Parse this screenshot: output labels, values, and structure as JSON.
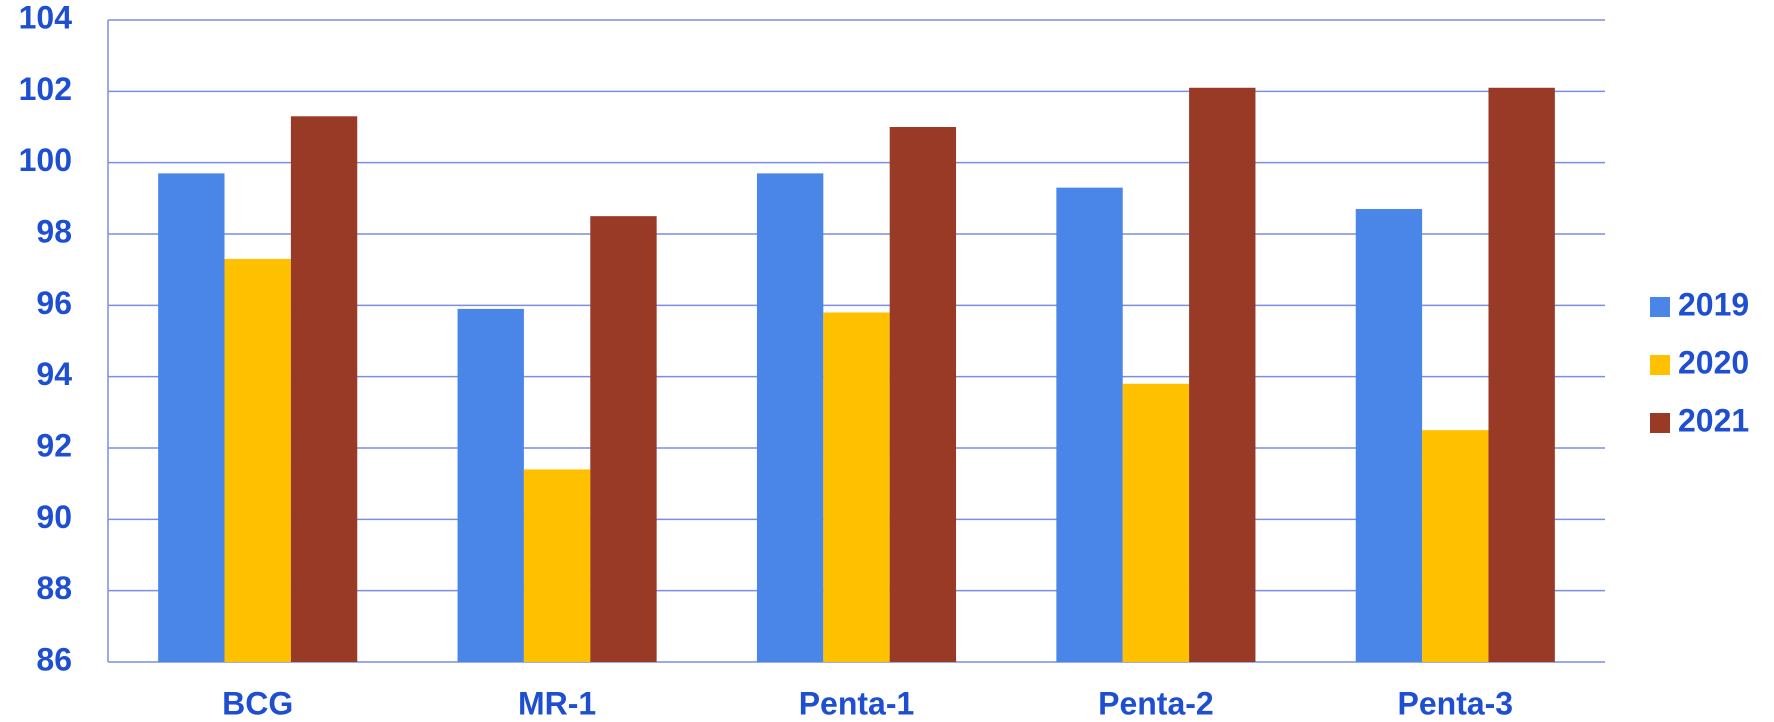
{
  "chart_data": {
    "type": "bar",
    "categories": [
      "BCG",
      "MR-1",
      "Penta-1",
      "Penta-2",
      "Penta-3"
    ],
    "series": [
      {
        "name": "2019",
        "color": "#4a86e8",
        "values": [
          99.7,
          95.9,
          99.7,
          99.3,
          98.7
        ]
      },
      {
        "name": "2020",
        "color": "#ffc000",
        "values": [
          97.3,
          91.4,
          95.8,
          93.8,
          92.5
        ]
      },
      {
        "name": "2021",
        "color": "#993a26",
        "values": [
          101.3,
          98.5,
          101.0,
          102.1,
          102.1
        ]
      }
    ],
    "ylim": [
      86,
      104
    ],
    "yticks": [
      86,
      88,
      90,
      92,
      94,
      96,
      98,
      100,
      102,
      104
    ],
    "grid": true,
    "legend": "right"
  }
}
